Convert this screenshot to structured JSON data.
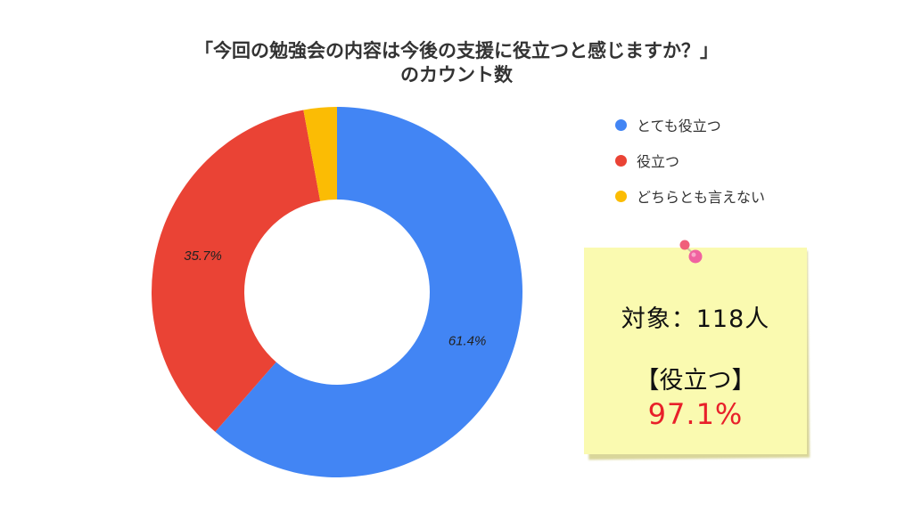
{
  "title": {
    "line1": "「今回の勉強会の内容は今後の支援に役立つと感じますか？」",
    "line2": "のカウント数"
  },
  "chart_data": {
    "type": "pie",
    "donut": true,
    "title": "「今回の勉強会の内容は今後の支援に役立つと感じますか？」のカウント数",
    "categories": [
      "とても役立つ",
      "役立つ",
      "どちらとも言えない"
    ],
    "values": [
      61.4,
      35.7,
      2.9
    ],
    "data_labels": [
      "61.4%",
      "35.7%",
      ""
    ],
    "colors": [
      "#4285f4",
      "#ea4335",
      "#fbbc04"
    ],
    "legend_position": "right"
  },
  "note": {
    "target": "対象：118人",
    "label": "【役立つ】",
    "value": "97.1%"
  },
  "pin_icon": "push-pin-icon"
}
